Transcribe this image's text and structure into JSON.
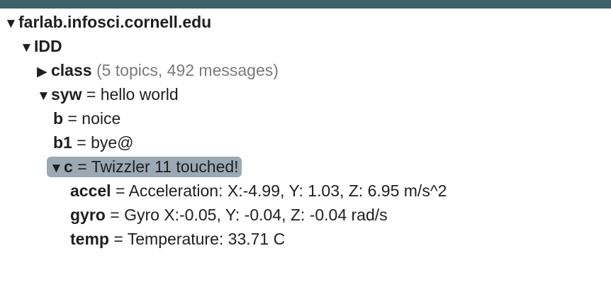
{
  "tree": {
    "root": {
      "toggle": "▼",
      "label": "farlab.infosci.cornell.edu"
    },
    "idd": {
      "toggle": "▼",
      "label": "IDD"
    },
    "class": {
      "toggle": "▶",
      "label": "class",
      "summary": "(5 topics, 492 messages)"
    },
    "syw": {
      "toggle": "▼",
      "label": "syw",
      "eq": "=",
      "value": "hello world"
    },
    "b": {
      "label": "b",
      "eq": "=",
      "value": "noice"
    },
    "b1": {
      "label": "b1",
      "eq": "=",
      "value": "bye@"
    },
    "c": {
      "toggle": "▼",
      "label": "c",
      "eq": "=",
      "value": "Twizzler 11 touched!"
    },
    "accel": {
      "label": "accel",
      "eq": "=",
      "value": "Acceleration: X:-4.99, Y: 1.03, Z: 6.95 m/s^2"
    },
    "gyro": {
      "label": "gyro",
      "eq": "=",
      "value": "Gyro X:-0.05, Y: -0.04, Z: -0.04 rad/s"
    },
    "temp": {
      "label": "temp",
      "eq": "=",
      "value": "Temperature: 33.71 C"
    }
  },
  "colors": {
    "topbar": "#3e6069",
    "selection": "#9aa9b4",
    "summary_text": "#7a7a7a"
  }
}
